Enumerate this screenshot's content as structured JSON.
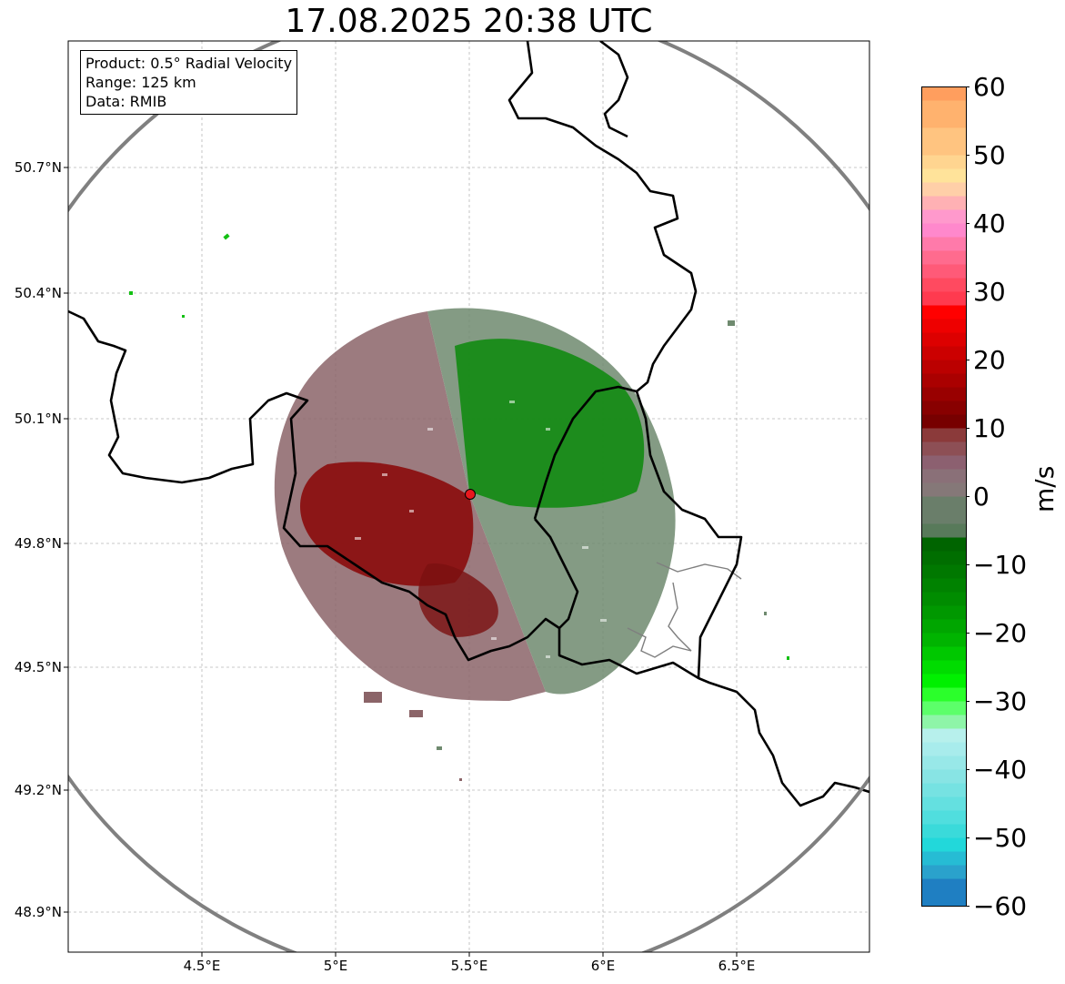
{
  "title": "17.08.2025 20:38 UTC",
  "info_box": {
    "lines": [
      "Product: 0.5° Radial Velocity",
      "Range: 125 km",
      "Data: RMIB"
    ]
  },
  "map": {
    "lon_range": [
      4.0,
      7.0
    ],
    "lat_range": [
      48.8,
      51.0
    ],
    "lat_ticks": [
      {
        "value": 50.7,
        "label": "50.7°N"
      },
      {
        "value": 50.4,
        "label": "50.4°N"
      },
      {
        "value": 50.1,
        "label": "50.1°N"
      },
      {
        "value": 49.8,
        "label": "49.8°N"
      },
      {
        "value": 49.5,
        "label": "49.5°N"
      },
      {
        "value": 49.2,
        "label": "49.2°N"
      },
      {
        "value": 48.9,
        "label": "48.9°N"
      }
    ],
    "lon_ticks": [
      {
        "value": 4.5,
        "label": "4.5°E"
      },
      {
        "value": 5.0,
        "label": "5°E"
      },
      {
        "value": 5.5,
        "label": "5.5°E"
      },
      {
        "value": 6.0,
        "label": "6°E"
      },
      {
        "value": 6.5,
        "label": "6.5°E"
      }
    ],
    "grid": true,
    "radar_site": {
      "lon": 5.505,
      "lat": 49.915,
      "color": "#e8191e"
    },
    "range_ring_color": "#808080"
  },
  "colorbar": {
    "label": "m/s",
    "min": -60,
    "max": 60,
    "ticks": [
      {
        "value": 60,
        "label": "60"
      },
      {
        "value": 50,
        "label": "50"
      },
      {
        "value": 40,
        "label": "40"
      },
      {
        "value": 30,
        "label": "30"
      },
      {
        "value": 20,
        "label": "20"
      },
      {
        "value": 10,
        "label": "10"
      },
      {
        "value": 0,
        "label": "0"
      },
      {
        "value": -10,
        "label": "−10"
      },
      {
        "value": -20,
        "label": "−20"
      },
      {
        "value": -30,
        "label": "−30"
      },
      {
        "value": -40,
        "label": "−40"
      },
      {
        "value": -50,
        "label": "−50"
      },
      {
        "value": -60,
        "label": "−60"
      }
    ],
    "stops": [
      {
        "from": 58,
        "to": 60,
        "color": "#ff9e5e"
      },
      {
        "from": 54,
        "to": 58,
        "color": "#ffb26e"
      },
      {
        "from": 50,
        "to": 54,
        "color": "#ffc480"
      },
      {
        "from": 48,
        "to": 50,
        "color": "#ffd590"
      },
      {
        "from": 46,
        "to": 48,
        "color": "#ffe39a"
      },
      {
        "from": 44,
        "to": 46,
        "color": "#ffcfa8"
      },
      {
        "from": 42,
        "to": 44,
        "color": "#ffb1b4"
      },
      {
        "from": 40,
        "to": 42,
        "color": "#ff99cc"
      },
      {
        "from": 38,
        "to": 40,
        "color": "#ff88cc"
      },
      {
        "from": 36,
        "to": 38,
        "color": "#ff7aaa"
      },
      {
        "from": 34,
        "to": 36,
        "color": "#ff6b8e"
      },
      {
        "from": 32,
        "to": 34,
        "color": "#ff5a78"
      },
      {
        "from": 30,
        "to": 32,
        "color": "#ff4a60"
      },
      {
        "from": 28,
        "to": 30,
        "color": "#ff3a4f"
      },
      {
        "from": 26,
        "to": 28,
        "color": "#ff0000"
      },
      {
        "from": 24,
        "to": 26,
        "color": "#ee0000"
      },
      {
        "from": 22,
        "to": 24,
        "color": "#dd0000"
      },
      {
        "from": 20,
        "to": 22,
        "color": "#cc0000"
      },
      {
        "from": 18,
        "to": 20,
        "color": "#bb0000"
      },
      {
        "from": 16,
        "to": 18,
        "color": "#aa0000"
      },
      {
        "from": 14,
        "to": 16,
        "color": "#990000"
      },
      {
        "from": 12,
        "to": 14,
        "color": "#880000"
      },
      {
        "from": 10,
        "to": 12,
        "color": "#770000"
      },
      {
        "from": 8,
        "to": 10,
        "color": "#8b3a3a"
      },
      {
        "from": 6,
        "to": 8,
        "color": "#8d4f55"
      },
      {
        "from": 4,
        "to": 6,
        "color": "#8c6070"
      },
      {
        "from": 2,
        "to": 4,
        "color": "#8a7078"
      },
      {
        "from": 0,
        "to": 2,
        "color": "#857878"
      },
      {
        "from": -2,
        "to": 0,
        "color": "#7a7a72"
      },
      {
        "from": -4,
        "to": 0,
        "color": "#6a7e6a"
      },
      {
        "from": -6,
        "to": -4,
        "color": "#587a5a"
      },
      {
        "from": -8,
        "to": -6,
        "color": "#006400"
      },
      {
        "from": -10,
        "to": -8,
        "color": "#006e00"
      },
      {
        "from": -12,
        "to": -10,
        "color": "#007800"
      },
      {
        "from": -14,
        "to": -12,
        "color": "#008200"
      },
      {
        "from": -16,
        "to": -14,
        "color": "#008c00"
      },
      {
        "from": -18,
        "to": -16,
        "color": "#009800"
      },
      {
        "from": -20,
        "to": -18,
        "color": "#00a600"
      },
      {
        "from": -22,
        "to": -20,
        "color": "#00b400"
      },
      {
        "from": -24,
        "to": -22,
        "color": "#00c800"
      },
      {
        "from": -26,
        "to": -24,
        "color": "#00dc00"
      },
      {
        "from": -28,
        "to": -26,
        "color": "#00f000"
      },
      {
        "from": -30,
        "to": -28,
        "color": "#2bff2b"
      },
      {
        "from": -32,
        "to": -30,
        "color": "#5cff6a"
      },
      {
        "from": -34,
        "to": -32,
        "color": "#8ef5a8"
      },
      {
        "from": -36,
        "to": -34,
        "color": "#b7f0ec"
      },
      {
        "from": -38,
        "to": -36,
        "color": "#a8ecec"
      },
      {
        "from": -40,
        "to": -38,
        "color": "#98e8e8"
      },
      {
        "from": -42,
        "to": -40,
        "color": "#88e4e4"
      },
      {
        "from": -44,
        "to": -42,
        "color": "#76e2e2"
      },
      {
        "from": -46,
        "to": -44,
        "color": "#64e0e0"
      },
      {
        "from": -48,
        "to": -46,
        "color": "#50dede"
      },
      {
        "from": -50,
        "to": -48,
        "color": "#3adada"
      },
      {
        "from": -52,
        "to": -50,
        "color": "#22d8da"
      },
      {
        "from": -54,
        "to": -52,
        "color": "#26bcd4"
      },
      {
        "from": -56,
        "to": -54,
        "color": "#2aa2cc"
      },
      {
        "from": -60,
        "to": -56,
        "color": "#1f7fc2"
      }
    ]
  }
}
